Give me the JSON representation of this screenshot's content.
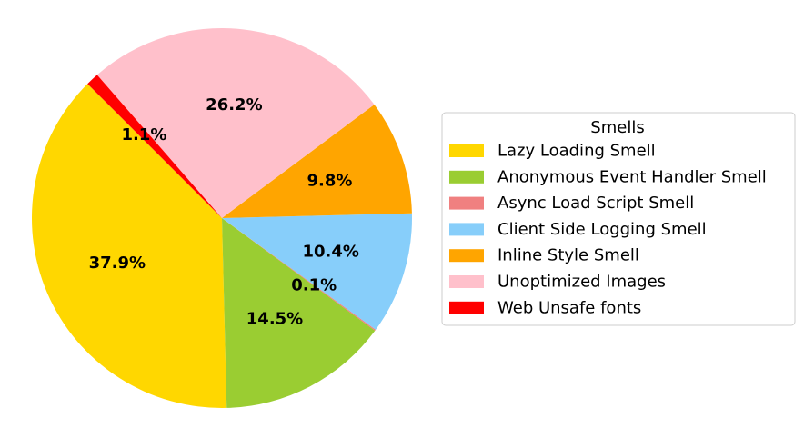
{
  "chart_data": {
    "type": "pie",
    "start_angle_deg": 135,
    "direction": "counterclockwise",
    "legend": {
      "title": "Smells",
      "placement": "right"
    },
    "slices": [
      {
        "label": "Lazy Loading Smell",
        "value": 37.9,
        "pct_label": "37.9%",
        "color": "#FFD700"
      },
      {
        "label": "Anonymous Event Handler Smell",
        "value": 14.5,
        "pct_label": "14.5%",
        "color": "#9ACD32"
      },
      {
        "label": "Async Load Script Smell",
        "value": 0.1,
        "pct_label": "0.1%",
        "color": "#F08080"
      },
      {
        "label": "Client Side Logging Smell",
        "value": 10.4,
        "pct_label": "10.4%",
        "color": "#87CEFA"
      },
      {
        "label": "Inline Style Smell",
        "value": 9.8,
        "pct_label": "9.8%",
        "color": "#FFA500"
      },
      {
        "label": "Unoptimized Images",
        "value": 26.2,
        "pct_label": "26.2%",
        "color": "#FFC0CB"
      },
      {
        "label": "Web Unsafe fonts",
        "value": 1.1,
        "pct_label": "1.1%",
        "color": "#FF0000"
      }
    ]
  }
}
